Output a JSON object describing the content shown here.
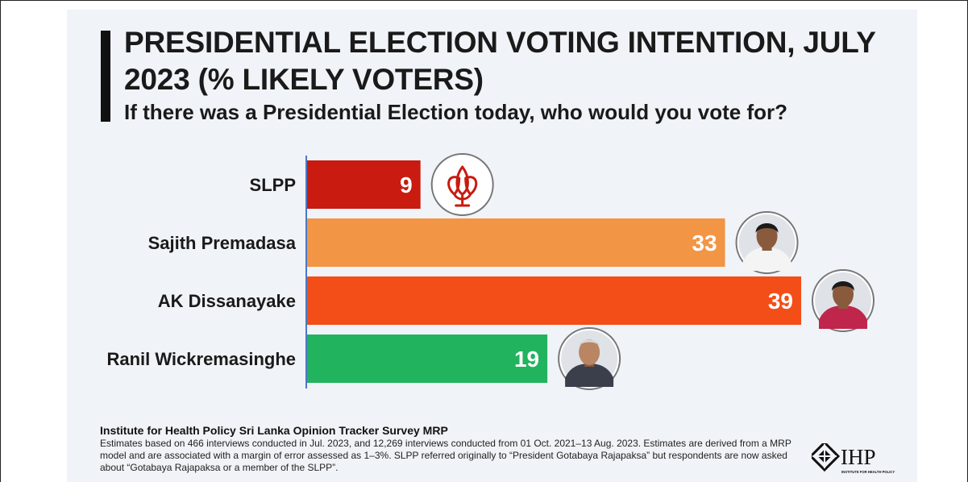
{
  "header": {
    "title": "PRESIDENTIAL ELECTION VOTING INTENTION, JULY 2023 (% LIKELY VOTERS)",
    "subtitle": "If there was a Presidential Election today, who would you vote for?"
  },
  "chart_data": {
    "type": "bar",
    "orientation": "horizontal",
    "categories": [
      "SLPP",
      "Sajith Premadasa",
      "AK Dissanayake",
      "Ranil Wickremasinghe"
    ],
    "values": [
      9,
      33,
      39,
      19
    ],
    "colors": [
      "#c91b0f",
      "#f29545",
      "#f34e17",
      "#22b35f"
    ],
    "icons": [
      "slpp-lotus-icon",
      "sajith-premadasa-avatar",
      "ak-dissanayake-avatar",
      "ranil-wickremasinghe-avatar"
    ],
    "xlim": [
      0,
      39
    ],
    "grid": false,
    "legend": "none"
  },
  "footer": {
    "source_title": "Institute for Health Policy Sri Lanka Opinion Tracker Survey MRP",
    "note": "Estimates based on 466 interviews conducted in Jul. 2023, and 12,269 interviews conducted from 01 Oct. 2021–13 Aug. 2023. Estimates are derived from a MRP model and are associated with a margin of error assessed as 1–3%. SLPP referred originally to “President Gotabaya Rajapaksa” but respondents are now asked about “Gotabaya Rajapaksa or a member of the SLPP”.",
    "logo_text": "IHP",
    "logo_subtext": "INSTITUTE FOR HEALTH POLICY"
  }
}
